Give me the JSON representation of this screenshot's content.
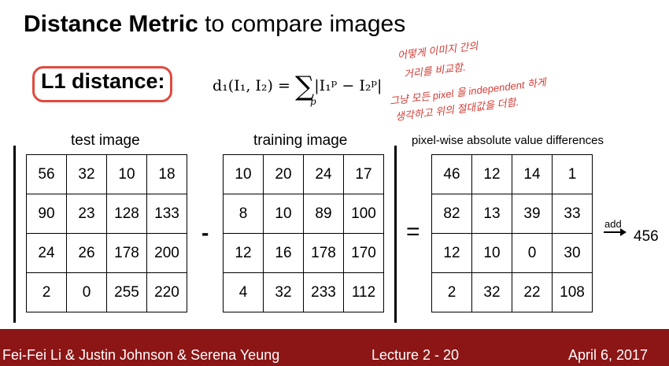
{
  "title": {
    "bold": "Distance Metric",
    "rest": " to compare images"
  },
  "l1_label": "L1 distance:",
  "formula": {
    "lhs": "d₁(I₁, I₂) = ",
    "sum": "∑",
    "index": "p",
    "term": "|I₁ᵖ − I₂ᵖ|"
  },
  "handwritten_notes": [
    "어떻게 이미지 간의",
    "거리를 비교함.",
    "그냥 모든 pixel 을 independent 하게",
    "생각하고 위의 절대값을 더함."
  ],
  "captions": {
    "test": "test image",
    "train": "training image",
    "diff": "pixel-wise absolute value differences"
  },
  "test_image": [
    [
      "56",
      "32",
      "10",
      "18"
    ],
    [
      "90",
      "23",
      "128",
      "133"
    ],
    [
      "24",
      "26",
      "178",
      "200"
    ],
    [
      "2",
      "0",
      "255",
      "220"
    ]
  ],
  "training_image": [
    [
      "10",
      "20",
      "24",
      "17"
    ],
    [
      "8",
      "10",
      "89",
      "100"
    ],
    [
      "12",
      "16",
      "178",
      "170"
    ],
    [
      "4",
      "32",
      "233",
      "112"
    ]
  ],
  "differences": [
    [
      "46",
      "12",
      "14",
      "1"
    ],
    [
      "82",
      "13",
      "39",
      "33"
    ],
    [
      "12",
      "10",
      "0",
      "30"
    ],
    [
      "2",
      "32",
      "22",
      "108"
    ]
  ],
  "operators": {
    "minus": "-",
    "equals": "="
  },
  "add_label": "add",
  "result": "456",
  "footer": {
    "authors": "Fei-Fei Li & Justin Johnson & Serena Yeung",
    "lecture": "Lecture 2 -   20",
    "date": "April 6, 2017"
  },
  "colors": {
    "footer_bg": "#8c1515",
    "annotation_red": "#d43b35"
  }
}
